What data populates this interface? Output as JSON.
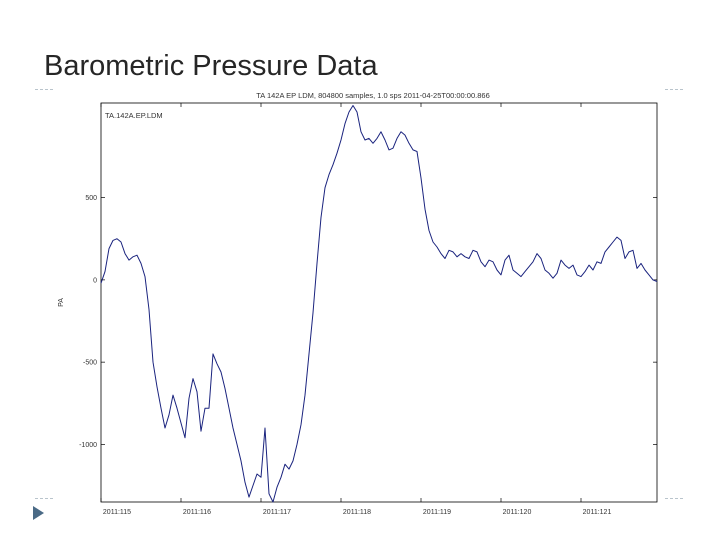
{
  "slide": {
    "title": "Barometric Pressure Data"
  },
  "colors": {
    "series": "#1a237e",
    "axis": "#000000",
    "decoration": "#b9c4cc",
    "bullet": "#4a6a86"
  },
  "chart_data": {
    "type": "line",
    "title": "TA 142A EP LDM, 804800 samples, 1.0 sps 2011-04-25T00:00:00.866",
    "legend": "TA.142A.EP.LDM",
    "xlabel": "",
    "ylabel": "PA",
    "ylim": [
      -1350,
      1075
    ],
    "xlim": [
      0,
      7
    ],
    "grid": false,
    "y_ticks": [
      {
        "value": 500,
        "label": "500"
      },
      {
        "value": 0,
        "label": "0"
      },
      {
        "value": -500,
        "label": "-500"
      },
      {
        "value": -1000,
        "label": "-1000"
      }
    ],
    "x_ticks": [
      {
        "value": 0,
        "label": "2011:115"
      },
      {
        "value": 1,
        "label": "2011:116"
      },
      {
        "value": 2,
        "label": "2011:117"
      },
      {
        "value": 3,
        "label": "2011:118"
      },
      {
        "value": 4,
        "label": "2011:119"
      },
      {
        "value": 5,
        "label": "2011:120"
      },
      {
        "value": 6,
        "label": "2011:121"
      }
    ],
    "series": [
      {
        "x": [
          0.0,
          0.05,
          0.1,
          0.15,
          0.2,
          0.25,
          0.3,
          0.35,
          0.4,
          0.45,
          0.5,
          0.55,
          0.6,
          0.65,
          0.7,
          0.75,
          0.8,
          0.85,
          0.9,
          0.95,
          1.0,
          1.05,
          1.1,
          1.15,
          1.2,
          1.25,
          1.3,
          1.35,
          1.4,
          1.45,
          1.5,
          1.55,
          1.6,
          1.65,
          1.7,
          1.75,
          1.8,
          1.85,
          1.9,
          1.95,
          2.0,
          2.05,
          2.1,
          2.15,
          2.2,
          2.25,
          2.3,
          2.35,
          2.4,
          2.45,
          2.5,
          2.55,
          2.6,
          2.65,
          2.7,
          2.75,
          2.8,
          2.85,
          2.9,
          2.95,
          3.0,
          3.05,
          3.1,
          3.15,
          3.2,
          3.25,
          3.3,
          3.35,
          3.4,
          3.45,
          3.5,
          3.55,
          3.6,
          3.65,
          3.7,
          3.75,
          3.8,
          3.85,
          3.9,
          3.95,
          4.0,
          4.05,
          4.1,
          4.15,
          4.2,
          4.25,
          4.3,
          4.35,
          4.4,
          4.45,
          4.5,
          4.55,
          4.6,
          4.65,
          4.7,
          4.75,
          4.8,
          4.85,
          4.9,
          4.95,
          5.0,
          5.05,
          5.1,
          5.15,
          5.2,
          5.25,
          5.3,
          5.35,
          5.4,
          5.45,
          5.5,
          5.55,
          5.6,
          5.65,
          5.7,
          5.75,
          5.8,
          5.85,
          5.9,
          5.95,
          6.0,
          6.05,
          6.1,
          6.15,
          6.2,
          6.25,
          6.3,
          6.35,
          6.4,
          6.45,
          6.5,
          6.55,
          6.6,
          6.65,
          6.7,
          6.75,
          6.8,
          6.85,
          6.9,
          6.95
        ],
        "values": [
          -20,
          50,
          190,
          240,
          250,
          230,
          160,
          120,
          140,
          150,
          100,
          20,
          -180,
          -500,
          -650,
          -780,
          -900,
          -820,
          -700,
          -780,
          -870,
          -960,
          -720,
          -600,
          -680,
          -920,
          -780,
          -780,
          -450,
          -510,
          -560,
          -660,
          -780,
          -900,
          -1000,
          -1100,
          -1230,
          -1320,
          -1250,
          -1180,
          -1200,
          -900,
          -1300,
          -1350,
          -1260,
          -1200,
          -1120,
          -1150,
          -1100,
          -1000,
          -880,
          -700,
          -450,
          -200,
          100,
          380,
          560,
          640,
          700,
          770,
          850,
          950,
          1020,
          1060,
          1020,
          900,
          850,
          860,
          830,
          860,
          900,
          850,
          790,
          800,
          860,
          900,
          880,
          830,
          790,
          780,
          620,
          430,
          300,
          230,
          200,
          160,
          130,
          180,
          170,
          140,
          160,
          140,
          130,
          180,
          170,
          110,
          80,
          120,
          110,
          60,
          30,
          120,
          150,
          60,
          40,
          20,
          50,
          80,
          110,
          160,
          130,
          60,
          40,
          10,
          40,
          120,
          90,
          70,
          90,
          30,
          20,
          50,
          90,
          60,
          110,
          100,
          170,
          200,
          230,
          260,
          240,
          130,
          170,
          180,
          70,
          100,
          60,
          30,
          0,
          -10
        ]
      }
    ]
  }
}
